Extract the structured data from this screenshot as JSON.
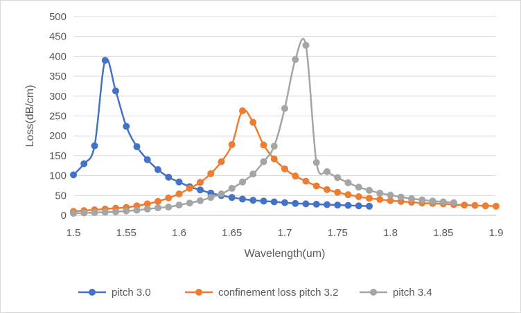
{
  "chart_data": {
    "type": "line",
    "title": "",
    "xlabel": "Wavelength(um)",
    "ylabel": "Loss(dB/cm)",
    "xlim": [
      1.5,
      1.9
    ],
    "ylim": [
      0,
      500
    ],
    "x_ticks": [
      "1.5",
      "1.55",
      "1.6",
      "1.65",
      "1.7",
      "1.75",
      "1.8",
      "1.85",
      "1.9"
    ],
    "y_ticks": [
      "0",
      "50",
      "100",
      "150",
      "200",
      "250",
      "300",
      "350",
      "400",
      "450",
      "500"
    ],
    "grid": "horizontal",
    "legend_position": "bottom",
    "series": [
      {
        "name": "pitch 3.0",
        "color": "#4472c4",
        "x": [
          1.5,
          1.51,
          1.52,
          1.53,
          1.54,
          1.55,
          1.56,
          1.57,
          1.58,
          1.59,
          1.6,
          1.61,
          1.62,
          1.63,
          1.64,
          1.65,
          1.66,
          1.67,
          1.68,
          1.69,
          1.7,
          1.71,
          1.72,
          1.73,
          1.74,
          1.75,
          1.76,
          1.77,
          1.78
        ],
        "y": [
          102,
          130,
          175,
          390,
          313,
          224,
          173,
          140,
          115,
          96,
          84,
          72,
          64,
          56,
          50,
          45,
          41,
          38,
          36,
          34,
          32,
          30,
          29,
          28,
          27,
          26,
          25,
          24,
          23
        ]
      },
      {
        "name": "confinement loss pitch 3.2",
        "color": "#ed7d31",
        "x": [
          1.5,
          1.51,
          1.52,
          1.53,
          1.54,
          1.55,
          1.56,
          1.57,
          1.58,
          1.59,
          1.6,
          1.61,
          1.62,
          1.63,
          1.64,
          1.65,
          1.66,
          1.67,
          1.68,
          1.69,
          1.7,
          1.71,
          1.72,
          1.73,
          1.74,
          1.75,
          1.76,
          1.77,
          1.78,
          1.79,
          1.8,
          1.81,
          1.82,
          1.83,
          1.84,
          1.85,
          1.86,
          1.87,
          1.88,
          1.89,
          1.9
        ],
        "y": [
          10,
          12,
          14,
          16,
          18,
          20,
          24,
          29,
          35,
          44,
          54,
          68,
          83,
          105,
          135,
          178,
          263,
          234,
          177,
          142,
          117,
          99,
          86,
          74,
          65,
          58,
          52,
          47,
          43,
          40,
          37,
          35,
          33,
          31,
          30,
          29,
          27,
          26,
          25,
          24,
          23
        ]
      },
      {
        "name": "pitch 3.4",
        "color": "#a5a5a5",
        "x": [
          1.5,
          1.51,
          1.52,
          1.53,
          1.54,
          1.55,
          1.56,
          1.57,
          1.58,
          1.59,
          1.6,
          1.61,
          1.62,
          1.63,
          1.64,
          1.65,
          1.66,
          1.67,
          1.68,
          1.69,
          1.7,
          1.71,
          1.72,
          1.73,
          1.74,
          1.75,
          1.76,
          1.77,
          1.78,
          1.79,
          1.8,
          1.81,
          1.82,
          1.83,
          1.84,
          1.85,
          1.86
        ],
        "y": [
          5,
          6,
          7,
          8,
          9,
          11,
          13,
          16,
          19,
          21,
          26,
          31,
          37,
          45,
          54,
          68,
          84,
          104,
          135,
          174,
          269,
          392,
          428,
          133,
          110,
          95,
          82,
          71,
          63,
          56,
          51,
          46,
          42,
          39,
          36,
          34,
          32
        ]
      }
    ]
  }
}
